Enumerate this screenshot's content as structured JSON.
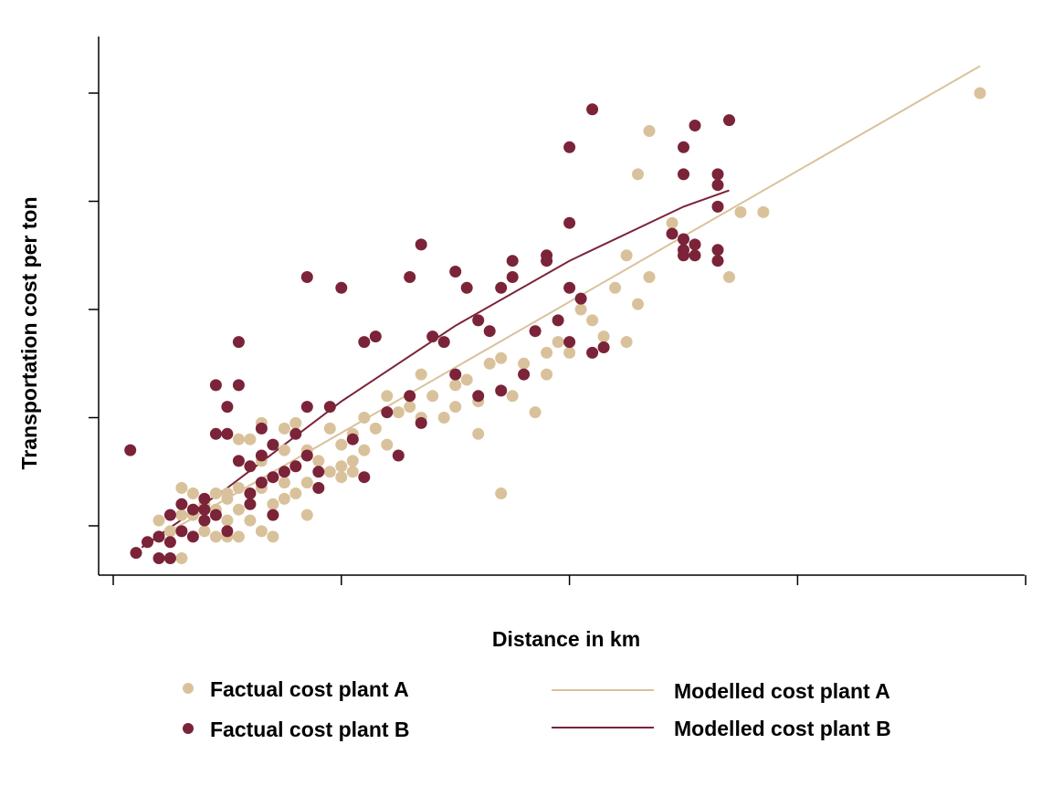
{
  "chart_data": {
    "type": "scatter",
    "xlabel": "Distance in km",
    "ylabel": "Transportation  cost per ton",
    "xlim": [
      -0.3,
      8.1
    ],
    "ylim": [
      -0.45,
      4.65
    ],
    "x_ticks": [
      0,
      2,
      4,
      6,
      8
    ],
    "y_ticks": [
      0,
      1,
      2,
      3,
      4
    ],
    "grid": false,
    "legend_position": "bottom",
    "colors": {
      "plant_a": "#d9c29b",
      "plant_b": "#7b2338"
    },
    "series": [
      {
        "name": "Factual cost plant A",
        "kind": "points",
        "color": "#d9c29b",
        "points": [
          [
            0.4,
            0.05
          ],
          [
            0.5,
            -0.05
          ],
          [
            0.6,
            0.1
          ],
          [
            0.6,
            -0.3
          ],
          [
            0.7,
            0.1
          ],
          [
            0.7,
            0.3
          ],
          [
            0.8,
            0.2
          ],
          [
            0.8,
            0.05
          ],
          [
            0.9,
            0.3
          ],
          [
            0.9,
            0.15
          ],
          [
            0.9,
            -0.1
          ],
          [
            1.0,
            0.25
          ],
          [
            1.0,
            0.05
          ],
          [
            1.0,
            -0.1
          ],
          [
            1.1,
            0.15
          ],
          [
            1.1,
            0.35
          ],
          [
            1.1,
            -0.1
          ],
          [
            1.2,
            0.05
          ],
          [
            1.2,
            0.2
          ],
          [
            1.2,
            0.8
          ],
          [
            1.3,
            0.35
          ],
          [
            1.3,
            -0.05
          ],
          [
            1.1,
            0.8
          ],
          [
            1.4,
            0.2
          ],
          [
            1.4,
            0.45
          ],
          [
            1.4,
            -0.1
          ],
          [
            1.5,
            0.4
          ],
          [
            1.5,
            0.7
          ],
          [
            1.5,
            0.25
          ],
          [
            1.6,
            0.3
          ],
          [
            1.6,
            0.55
          ],
          [
            1.6,
            0.95
          ],
          [
            1.7,
            0.4
          ],
          [
            1.7,
            0.1
          ],
          [
            1.8,
            0.6
          ],
          [
            1.8,
            0.35
          ],
          [
            1.9,
            0.9
          ],
          [
            1.9,
            0.5
          ],
          [
            2.0,
            0.45
          ],
          [
            2.0,
            0.75
          ],
          [
            2.1,
            0.6
          ],
          [
            2.1,
            0.85
          ],
          [
            2.2,
            0.7
          ],
          [
            2.3,
            0.9
          ],
          [
            2.4,
            0.75
          ],
          [
            2.5,
            1.05
          ],
          [
            2.6,
            1.1
          ],
          [
            2.7,
            1.4
          ],
          [
            2.8,
            1.2
          ],
          [
            2.9,
            1.0
          ],
          [
            3.0,
            1.3
          ],
          [
            3.1,
            1.35
          ],
          [
            3.2,
            1.15
          ],
          [
            3.3,
            1.5
          ],
          [
            3.4,
            1.55
          ],
          [
            3.5,
            1.2
          ],
          [
            3.6,
            1.5
          ],
          [
            3.7,
            1.8
          ],
          [
            3.8,
            1.6
          ],
          [
            3.9,
            1.7
          ],
          [
            4.1,
            2.0
          ],
          [
            4.2,
            1.9
          ],
          [
            4.4,
            2.2
          ],
          [
            4.5,
            1.7
          ],
          [
            4.6,
            2.05
          ],
          [
            4.7,
            2.3
          ],
          [
            4.9,
            2.8
          ],
          [
            3.2,
            0.85
          ],
          [
            3.4,
            0.3
          ],
          [
            3.7,
            1.05
          ],
          [
            3.8,
            1.4
          ],
          [
            4.0,
            1.6
          ],
          [
            4.3,
            1.75
          ],
          [
            4.5,
            2.5
          ],
          [
            4.6,
            3.25
          ],
          [
            4.7,
            3.65
          ],
          [
            5.5,
            2.9
          ],
          [
            5.7,
            2.9
          ],
          [
            5.4,
            2.3
          ],
          [
            7.6,
            4.0
          ],
          [
            1.3,
            0.6
          ],
          [
            1.7,
            0.7
          ],
          [
            2.0,
            0.55
          ],
          [
            2.2,
            1.0
          ],
          [
            1.0,
            0.3
          ],
          [
            0.8,
            -0.05
          ],
          [
            0.6,
            0.35
          ],
          [
            1.5,
            0.9
          ],
          [
            2.1,
            0.5
          ],
          [
            1.3,
            0.95
          ],
          [
            2.4,
            1.2
          ],
          [
            2.7,
            1.0
          ],
          [
            3.0,
            1.1
          ]
        ]
      },
      {
        "name": "Factual cost plant B",
        "kind": "points",
        "color": "#7b2338",
        "points": [
          [
            0.15,
            0.7
          ],
          [
            0.2,
            -0.25
          ],
          [
            0.3,
            -0.15
          ],
          [
            0.4,
            -0.1
          ],
          [
            0.4,
            -0.3
          ],
          [
            0.5,
            -0.15
          ],
          [
            0.5,
            -0.3
          ],
          [
            0.6,
            -0.05
          ],
          [
            0.7,
            -0.1
          ],
          [
            0.7,
            0.15
          ],
          [
            0.8,
            0.15
          ],
          [
            0.8,
            0.05
          ],
          [
            0.9,
            0.1
          ],
          [
            0.9,
            1.3
          ],
          [
            0.9,
            0.85
          ],
          [
            1.0,
            1.1
          ],
          [
            1.0,
            0.85
          ],
          [
            1.1,
            0.6
          ],
          [
            1.1,
            1.3
          ],
          [
            1.2,
            0.3
          ],
          [
            1.2,
            0.55
          ],
          [
            1.3,
            0.65
          ],
          [
            1.3,
            0.4
          ],
          [
            1.3,
            0.9
          ],
          [
            1.4,
            0.45
          ],
          [
            1.4,
            0.1
          ],
          [
            1.5,
            0.5
          ],
          [
            1.6,
            0.55
          ],
          [
            1.6,
            0.85
          ],
          [
            1.7,
            1.1
          ],
          [
            1.7,
            0.65
          ],
          [
            1.7,
            2.3
          ],
          [
            1.8,
            0.5
          ],
          [
            1.8,
            0.35
          ],
          [
            2.1,
            0.8
          ],
          [
            2.2,
            0.45
          ],
          [
            2.2,
            1.7
          ],
          [
            2.3,
            1.75
          ],
          [
            2.5,
            0.65
          ],
          [
            2.6,
            1.2
          ],
          [
            2.6,
            2.3
          ],
          [
            2.7,
            0.95
          ],
          [
            2.7,
            2.6
          ],
          [
            2.8,
            1.75
          ],
          [
            2.9,
            1.7
          ],
          [
            3.0,
            1.4
          ],
          [
            3.0,
            2.35
          ],
          [
            3.1,
            2.2
          ],
          [
            3.2,
            1.9
          ],
          [
            3.2,
            1.2
          ],
          [
            3.3,
            1.8
          ],
          [
            3.4,
            1.25
          ],
          [
            3.5,
            2.3
          ],
          [
            3.6,
            1.4
          ],
          [
            3.7,
            1.8
          ],
          [
            3.8,
            2.5
          ],
          [
            3.8,
            2.45
          ],
          [
            4.0,
            1.7
          ],
          [
            4.3,
            1.65
          ],
          [
            4.0,
            3.5
          ],
          [
            4.0,
            2.8
          ],
          [
            4.0,
            2.2
          ],
          [
            4.2,
            1.6
          ],
          [
            4.2,
            3.85
          ],
          [
            5.0,
            3.25
          ],
          [
            5.0,
            2.65
          ],
          [
            5.0,
            2.55
          ],
          [
            5.0,
            2.5
          ],
          [
            5.3,
            2.95
          ],
          [
            5.3,
            2.55
          ],
          [
            5.3,
            2.45
          ],
          [
            5.0,
            3.5
          ],
          [
            5.1,
            3.7
          ],
          [
            5.1,
            2.6
          ],
          [
            5.1,
            2.5
          ],
          [
            4.9,
            2.7
          ],
          [
            5.3,
            3.25
          ],
          [
            5.4,
            3.75
          ],
          [
            3.9,
            1.9
          ],
          [
            4.1,
            2.1
          ],
          [
            1.0,
            -0.05
          ],
          [
            1.2,
            0.2
          ],
          [
            1.1,
            1.7
          ],
          [
            1.9,
            1.1
          ],
          [
            2.0,
            2.2
          ],
          [
            3.4,
            2.2
          ],
          [
            3.5,
            2.45
          ],
          [
            0.8,
            0.25
          ],
          [
            0.6,
            0.2
          ],
          [
            0.5,
            0.1
          ],
          [
            1.4,
            0.75
          ],
          [
            2.4,
            1.05
          ],
          [
            5.3,
            3.15
          ]
        ]
      },
      {
        "name": "Modelled cost plant A",
        "kind": "line",
        "color": "#d9c29b",
        "points": [
          [
            0.25,
            -0.2
          ],
          [
            7.6,
            4.25
          ]
        ]
      },
      {
        "name": "Modelled cost plant B",
        "kind": "line",
        "color": "#7b2338",
        "points": [
          [
            0.25,
            -0.2
          ],
          [
            1.0,
            0.35
          ],
          [
            2.0,
            1.15
          ],
          [
            3.0,
            1.85
          ],
          [
            4.0,
            2.45
          ],
          [
            5.0,
            2.95
          ],
          [
            5.4,
            3.1
          ]
        ]
      }
    ]
  }
}
